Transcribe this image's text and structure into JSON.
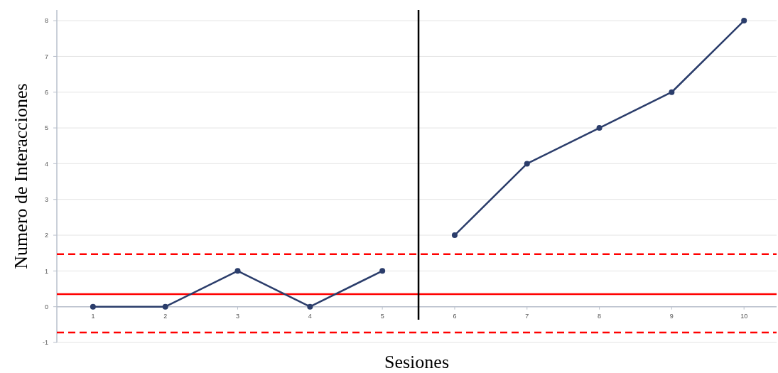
{
  "chart_data": {
    "type": "line",
    "xlabel": "Sesiones",
    "ylabel": "Numero de Interacciones",
    "x": [
      1,
      2,
      3,
      4,
      5,
      6,
      7,
      8,
      9,
      10
    ],
    "xlim": [
      0.5,
      10.45
    ],
    "xticks": [
      1,
      2,
      3,
      4,
      5,
      6,
      7,
      8,
      9,
      10
    ],
    "ylim": [
      -1,
      8.3
    ],
    "yticks": [
      -1,
      0,
      1,
      2,
      3,
      4,
      5,
      6,
      7,
      8
    ],
    "series": [
      {
        "color": "#2b3d6b",
        "values": [
          0,
          0,
          1,
          0,
          1,
          null,
          null,
          null,
          null,
          null
        ]
      },
      {
        "color": "#2b3d6b",
        "values": [
          null,
          null,
          null,
          null,
          null,
          2,
          4,
          5,
          6,
          8
        ]
      }
    ],
    "ref_lines": [
      {
        "axis": "y",
        "value": 0.35,
        "color": "#ff0000",
        "line_style": "solid"
      },
      {
        "axis": "y",
        "value": 1.47,
        "color": "#ff0000",
        "line_style": "dashed"
      },
      {
        "axis": "y",
        "value": -0.72,
        "color": "#ff0000",
        "line_style": "dashed"
      },
      {
        "axis": "x",
        "value": 5.5,
        "color": "#000000",
        "line_style": "solid"
      }
    ],
    "grid": "y",
    "marker": "circle",
    "line_style": "solid"
  }
}
